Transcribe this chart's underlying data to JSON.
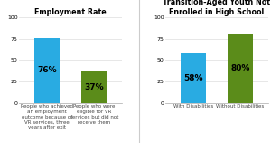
{
  "chart1": {
    "title": "Employment Rate",
    "categories": [
      "People who achieved\nan employment\noutcome because of\nVR services, three\nyears after exit",
      "People who were\neligible for VR\nservices but did not\nreceive them"
    ],
    "values": [
      76,
      37
    ],
    "colors": [
      "#29ABE2",
      "#5B8C1A"
    ],
    "ylim": [
      0,
      100
    ],
    "yticks": [
      0,
      25,
      50,
      75,
      100
    ]
  },
  "chart2": {
    "title": "Employment Rate Among\nTransition-Aged Youth Not\nEnrolled in High School",
    "categories": [
      "With Disabilities",
      "Without Disabilities"
    ],
    "values": [
      58,
      80
    ],
    "colors": [
      "#29ABE2",
      "#5B8C1A"
    ],
    "ylim": [
      0,
      100
    ],
    "yticks": [
      0,
      25,
      50,
      75,
      100
    ]
  },
  "bg_color": "#ffffff",
  "bar_label_fontsize": 6.5,
  "title_fontsize": 5.8,
  "tick_fontsize": 4.5,
  "cat_fontsize": 4.0,
  "divider_color": "#cccccc"
}
